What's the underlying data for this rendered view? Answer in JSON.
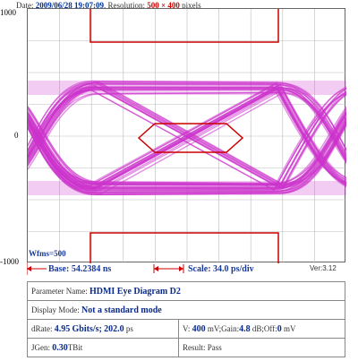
{
  "header": {
    "date_label": "Date:",
    "date_value": "2009/06/28 19:07:09",
    "resolution_label": ", Resolution:",
    "resolution_value": "500 × 400",
    "resolution_unit": "pixels"
  },
  "plot": {
    "y_top_label": "1000",
    "y_mid_label": "0",
    "y_bottom_label": "-1000",
    "wfms_label": "Wfms=500",
    "grid_color": "#bbbbbb",
    "trace_color": "#cc33cc",
    "mask_color": "#cc0000"
  },
  "scale_bar": {
    "base_text": "Base: 54.2384 ns",
    "scale_text": "Scale: 34.0 ps/div",
    "version_text": "Ver:3.12"
  },
  "info": {
    "param_label": "Parameter Name:",
    "param_value": "HDMI Eye Diagram D2",
    "mode_label": "Display Mode:",
    "mode_value": "Not a standard mode",
    "drate_label": "dRate:",
    "drate_value": "4.95",
    "drate_unit": "Gbits/s;",
    "drate_ps": "202.0",
    "drate_ps_unit": "ps",
    "v_label": "V:",
    "v_value": "400",
    "v_unit": "mV;Gain:",
    "gain_value": "4.8",
    "gain_unit": "dB;Off:",
    "off_value": "0",
    "off_unit": "mV",
    "jgen_label": "JGen:",
    "jgen_value": "0.30",
    "jgen_unit": "TBit",
    "result_label": "Result:",
    "result_value": "Pass"
  }
}
